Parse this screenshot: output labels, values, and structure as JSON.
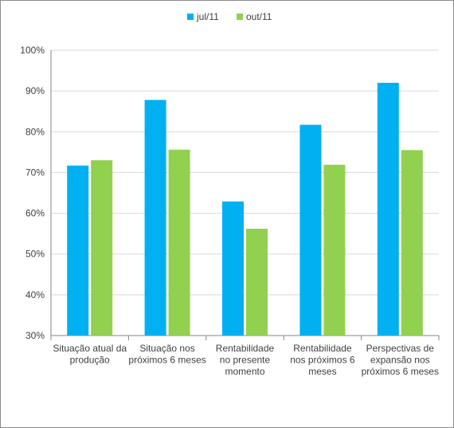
{
  "chart_data": {
    "type": "bar",
    "categories": [
      [
        "Situação atual da",
        "produção"
      ],
      [
        "Situação nos",
        "próximos 6 meses"
      ],
      [
        "Rentabilidade",
        "no presente",
        "momento"
      ],
      [
        "Rentabilidade",
        "nos próximos 6",
        "meses"
      ],
      [
        "Perspectivas de",
        "expansão nos",
        "próximos 6 meses"
      ]
    ],
    "series": [
      {
        "name": "jul/11",
        "color": "#00B0F0",
        "values": [
          71.7,
          87.8,
          62.9,
          81.7,
          92.0
        ]
      },
      {
        "name": "out/11",
        "color": "#92D050",
        "values": [
          73.0,
          75.6,
          56.2,
          71.9,
          75.5
        ]
      }
    ],
    "ylim": [
      30,
      100
    ],
    "yticks": [
      "30%",
      "40%",
      "50%",
      "60%",
      "70%",
      "80%",
      "90%",
      "100%"
    ],
    "grid": true,
    "legend_position": "top-center"
  }
}
